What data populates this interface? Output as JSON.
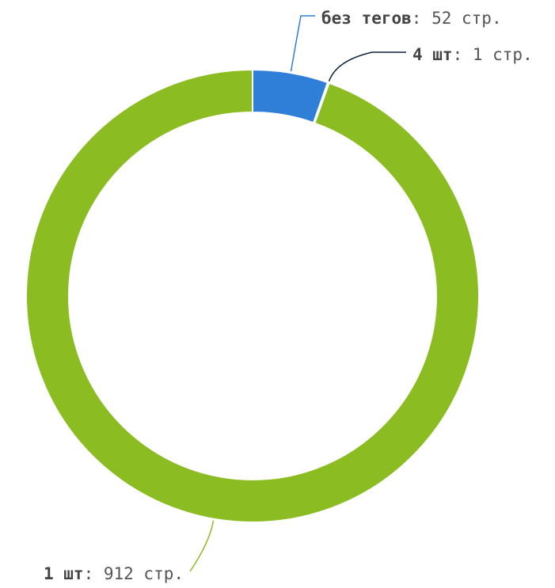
{
  "chart_data": {
    "type": "pie",
    "style": "donut",
    "slices": [
      {
        "label": "без тегов",
        "value": 52,
        "unit": "стр.",
        "color": "#2f7ed8"
      },
      {
        "label": "4 шт",
        "value": 1,
        "unit": "стр.",
        "color": "#0d233a"
      },
      {
        "label": "1 шт",
        "value": 912,
        "unit": "стр.",
        "color": "#8bbc21"
      }
    ],
    "separator": ": "
  }
}
